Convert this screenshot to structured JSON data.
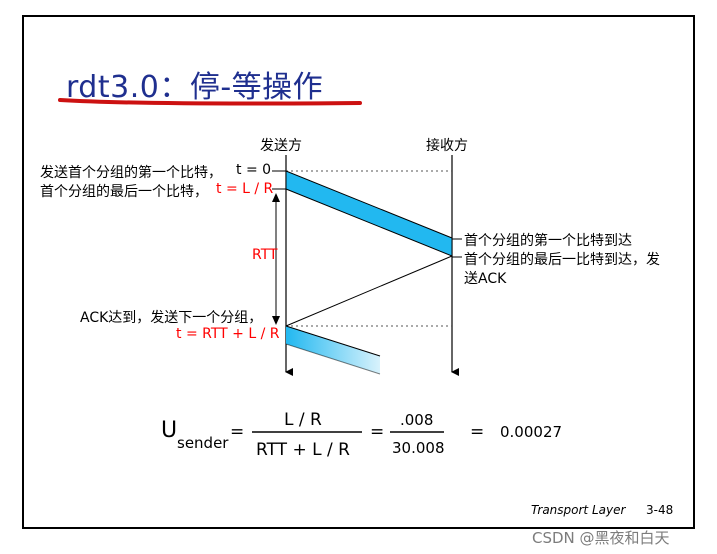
{
  "title": "rdt3.0：停-等操作",
  "sender_label": "发送方",
  "receiver_label": "接收方",
  "sender_events": {
    "first_bit": "发送首个分组的第一个比特，",
    "t0": "t = 0",
    "last_bit": "首个分组的最后一个比特，",
    "t_LR": "t = L / R",
    "rtt": "RTT",
    "ack_arrive": "ACK达到，发送下一个分组，",
    "t_rtt": "t = RTT + L / R"
  },
  "receiver_events": {
    "first_arrive": "首个分组的第一个比特到达",
    "last_arrive_line1": "首个分组的最后一比特到达，发",
    "last_arrive_line2": "送ACK"
  },
  "formula": {
    "u": "U",
    "sub": "sender",
    "eq1": "=",
    "num1": "L / R",
    "den1": "RTT + L / R",
    "eq2": "=",
    "num2": ".008",
    "den2": "30.008",
    "eq3": "=",
    "result": "0.00027"
  },
  "footer": {
    "course": "Transport Layer",
    "page": "3-48"
  },
  "watermark": "CSDN @黑夜和白天",
  "colors": {
    "title": "#1f2f8f",
    "underline": "#cc1111",
    "packet_fill": "#22b8f0",
    "highlight": "#ff0000"
  }
}
